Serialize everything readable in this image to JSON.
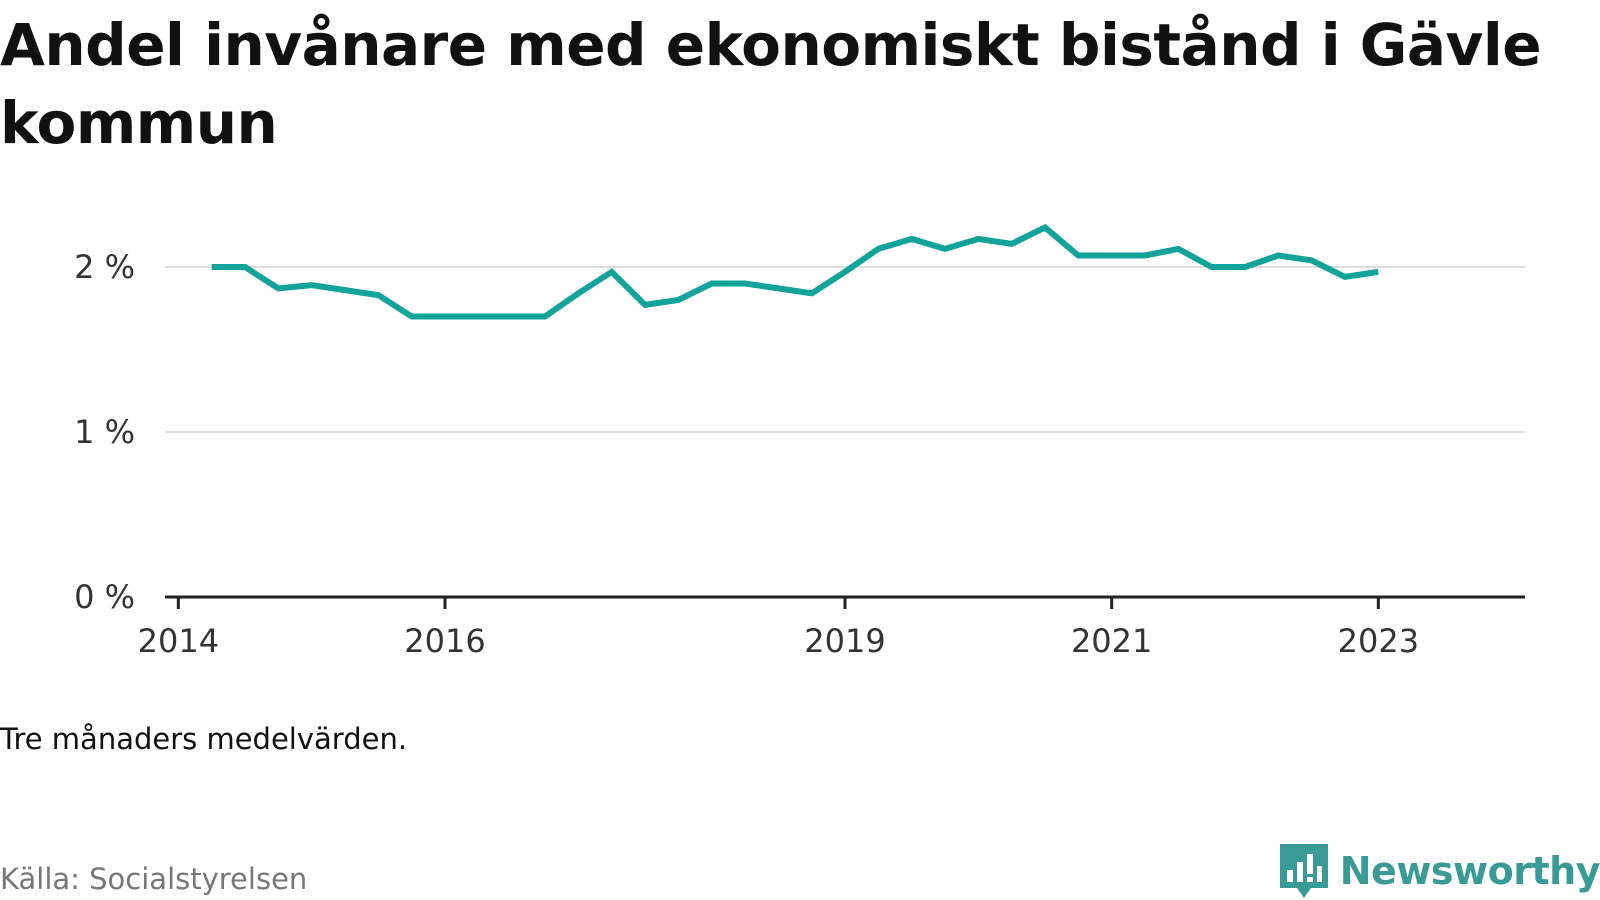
{
  "title": "Andel invånare med ekonomiskt bistånd i Gävle kommun",
  "note": "Tre månaders medelvärden.",
  "source": "Källa: Socialstyrelsen",
  "brand": {
    "name": "Newsworthy",
    "icon": "newsworthy-logo-icon",
    "color": "#3a9a96"
  },
  "chart_data": {
    "type": "line",
    "title": "Andel invånare med ekonomiskt bistånd i Gävle kommun",
    "xlabel": "",
    "ylabel": "",
    "ylim": [
      0,
      2
    ],
    "yticks": [
      0,
      1,
      2
    ],
    "ytick_labels": [
      "0 %",
      "1 %",
      "2 %"
    ],
    "xticks": [
      2014,
      2016,
      2019,
      2021,
      2023
    ],
    "xtick_labels": [
      "2014",
      "2016",
      "2019",
      "2021",
      "2023"
    ],
    "grid": true,
    "line_color": "#12a39b",
    "series": [
      {
        "values": [
          [
            2014.25,
            2.0
          ],
          [
            2014.5,
            2.0
          ],
          [
            2014.75,
            1.87
          ],
          [
            2015.0,
            1.89
          ],
          [
            2015.25,
            1.86
          ],
          [
            2015.5,
            1.83
          ],
          [
            2015.75,
            1.7
          ],
          [
            2016.0,
            1.7
          ],
          [
            2016.25,
            1.7
          ],
          [
            2016.5,
            1.7
          ],
          [
            2016.75,
            1.7
          ],
          [
            2017.0,
            1.84
          ],
          [
            2017.25,
            1.97
          ],
          [
            2017.5,
            1.77
          ],
          [
            2017.75,
            1.8
          ],
          [
            2018.0,
            1.9
          ],
          [
            2018.25,
            1.9
          ],
          [
            2018.5,
            1.87
          ],
          [
            2018.75,
            1.84
          ],
          [
            2019.0,
            1.97
          ],
          [
            2019.25,
            2.11
          ],
          [
            2019.5,
            2.17
          ],
          [
            2019.75,
            2.11
          ],
          [
            2020.0,
            2.17
          ],
          [
            2020.25,
            2.14
          ],
          [
            2020.5,
            2.24
          ],
          [
            2020.75,
            2.07
          ],
          [
            2021.0,
            2.07
          ],
          [
            2021.25,
            2.07
          ],
          [
            2021.5,
            2.11
          ],
          [
            2021.75,
            2.0
          ],
          [
            2022.0,
            2.0
          ],
          [
            2022.25,
            2.07
          ],
          [
            2022.5,
            2.04
          ],
          [
            2022.75,
            1.94
          ],
          [
            2023.0,
            1.97
          ]
        ]
      }
    ]
  }
}
